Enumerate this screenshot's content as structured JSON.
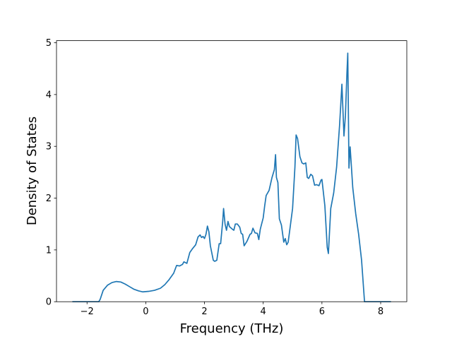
{
  "chart_data": {
    "type": "line",
    "x_label": "Frequency (THz)",
    "y_label": "Density of States",
    "x": [
      -2.5,
      -1.6,
      -1.55,
      -1.45,
      -1.3,
      -1.15,
      -1.0,
      -0.85,
      -0.7,
      -0.55,
      -0.4,
      -0.25,
      -0.1,
      0.1,
      0.3,
      0.5,
      0.65,
      0.8,
      0.95,
      1.05,
      1.15,
      1.25,
      1.3,
      1.4,
      1.5,
      1.6,
      1.7,
      1.78,
      1.85,
      1.9,
      1.95,
      2.0,
      2.05,
      2.1,
      2.15,
      2.2,
      2.3,
      2.35,
      2.42,
      2.5,
      2.55,
      2.62,
      2.65,
      2.7,
      2.75,
      2.8,
      2.85,
      2.95,
      3.0,
      3.05,
      3.12,
      3.2,
      3.25,
      3.3,
      3.35,
      3.45,
      3.55,
      3.6,
      3.65,
      3.72,
      3.8,
      3.85,
      3.9,
      4.0,
      4.05,
      4.1,
      4.2,
      4.3,
      4.38,
      4.42,
      4.45,
      4.5,
      4.55,
      4.62,
      4.7,
      4.75,
      4.8,
      4.85,
      4.92,
      5.0,
      5.08,
      5.12,
      5.17,
      5.25,
      5.32,
      5.38,
      5.45,
      5.5,
      5.55,
      5.62,
      5.68,
      5.75,
      5.82,
      5.9,
      5.97,
      6.0,
      6.1,
      6.18,
      6.22,
      6.3,
      6.4,
      6.5,
      6.6,
      6.68,
      6.75,
      6.8,
      6.85,
      6.88,
      6.92,
      6.96,
      7.05,
      7.15,
      7.25,
      7.35,
      7.45,
      8.35
    ],
    "values": [
      0,
      0,
      0.05,
      0.22,
      0.32,
      0.37,
      0.39,
      0.38,
      0.34,
      0.29,
      0.24,
      0.21,
      0.19,
      0.2,
      0.22,
      0.26,
      0.33,
      0.43,
      0.55,
      0.7,
      0.69,
      0.72,
      0.77,
      0.74,
      0.95,
      1.03,
      1.1,
      1.25,
      1.29,
      1.24,
      1.26,
      1.22,
      1.3,
      1.46,
      1.35,
      1.08,
      0.8,
      0.78,
      0.8,
      1.12,
      1.12,
      1.55,
      1.8,
      1.5,
      1.38,
      1.55,
      1.45,
      1.4,
      1.38,
      1.5,
      1.5,
      1.44,
      1.32,
      1.3,
      1.08,
      1.17,
      1.3,
      1.32,
      1.42,
      1.33,
      1.32,
      1.2,
      1.4,
      1.62,
      1.85,
      2.05,
      2.15,
      2.4,
      2.55,
      2.84,
      2.4,
      2.3,
      1.6,
      1.48,
      1.15,
      1.22,
      1.1,
      1.15,
      1.45,
      1.8,
      2.6,
      3.22,
      3.15,
      2.8,
      2.68,
      2.66,
      2.68,
      2.4,
      2.38,
      2.46,
      2.43,
      2.25,
      2.26,
      2.24,
      2.35,
      2.36,
      1.85,
      1.05,
      0.93,
      1.8,
      2.1,
      2.6,
      3.4,
      4.2,
      3.2,
      3.6,
      4.4,
      4.8,
      2.58,
      2.99,
      2.2,
      1.7,
      1.3,
      0.8,
      0,
      0
    ],
    "color": "#1f77b4",
    "xlim": [
      -3.04,
      8.89
    ],
    "xticks": [
      {
        "value": -2,
        "label": "−2"
      },
      0,
      2,
      4,
      6,
      8
    ],
    "ylim": [
      0,
      5.04
    ],
    "yticks": [
      0,
      1,
      2,
      3,
      4,
      5
    ],
    "grid": false
  }
}
